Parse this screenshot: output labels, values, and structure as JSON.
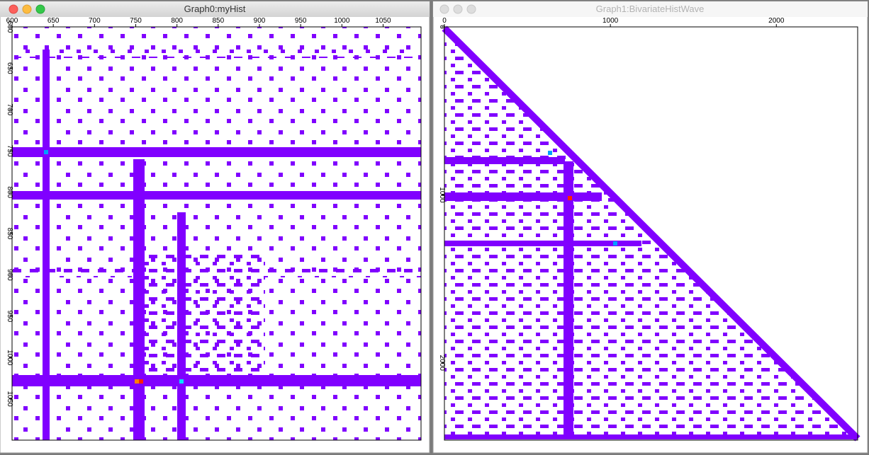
{
  "windows": [
    {
      "title": "Graph0:myHist",
      "active": true,
      "xlim": [
        600,
        1096
      ],
      "ylim": [
        600,
        1100
      ],
      "xticks": [
        600,
        650,
        700,
        750,
        800,
        850,
        900,
        950,
        1000,
        1050
      ],
      "yticks": [
        600,
        650,
        700,
        750,
        800,
        850,
        900,
        950,
        1000,
        1050
      ]
    },
    {
      "title": "Graph1:BivariateHistWave",
      "active": false,
      "xlim": [
        0,
        2490
      ],
      "ylim": [
        0,
        2460
      ],
      "xticks": [
        0,
        1000,
        2000
      ],
      "yticks": [
        0,
        1000,
        2000
      ]
    }
  ]
}
